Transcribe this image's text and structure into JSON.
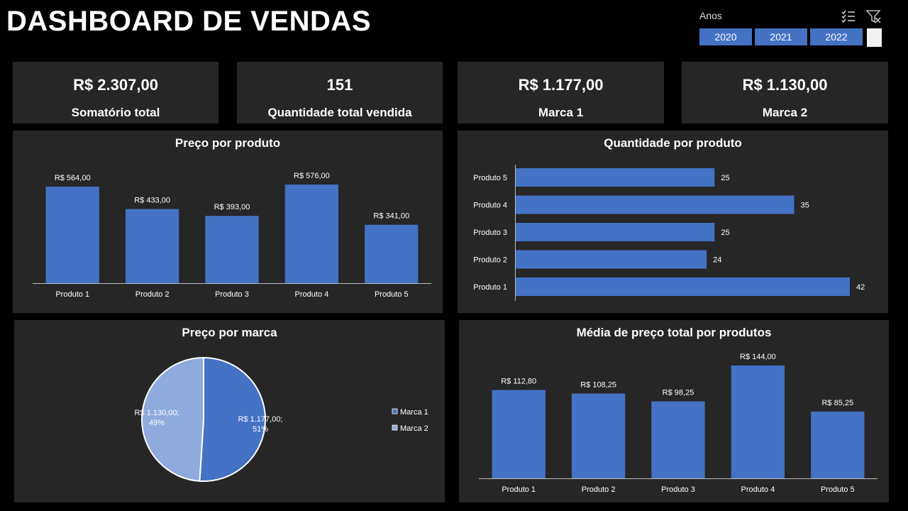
{
  "header": {
    "title": "DASHBOARD DE VENDAS"
  },
  "slicer": {
    "label": "Anos",
    "multi_select_icon": "multi-select-icon",
    "clear_filter_icon": "clear-filter-icon",
    "years": [
      "2020",
      "2021",
      "2022"
    ],
    "accent": "#4472c4"
  },
  "kpis": [
    {
      "value": "R$ 2.307,00",
      "label": "Somatório total"
    },
    {
      "value": "151",
      "label": "Quantidade total vendida"
    },
    {
      "value": "R$ 1.177,00",
      "label": "Marca 1"
    },
    {
      "value": "R$ 1.130,00",
      "label": "Marca 2"
    }
  ],
  "charts": {
    "price": {
      "title": "Preço por produto"
    },
    "quantity": {
      "title": "Quantidade por produto"
    },
    "brand": {
      "title": "Preço por marca"
    },
    "avg": {
      "title": "Média de preço total por produtos"
    }
  },
  "chart_data": [
    {
      "type": "bar",
      "title": "Preço por produto",
      "categories": [
        "Produto 1",
        "Produto 2",
        "Produto 3",
        "Produto 4",
        "Produto 5"
      ],
      "values": [
        564,
        433,
        393,
        576,
        341
      ],
      "labels": [
        "R$ 564,00",
        "R$ 433,00",
        "R$ 393,00",
        "R$ 576,00",
        "R$ 341,00"
      ],
      "ylim": [
        0,
        576
      ],
      "color": "#4472c4"
    },
    {
      "type": "bar",
      "orientation": "horizontal",
      "title": "Quantidade por produto",
      "categories": [
        "Produto 5",
        "Produto 4",
        "Produto 3",
        "Produto 2",
        "Produto 1"
      ],
      "values": [
        25,
        35,
        25,
        24,
        42
      ],
      "labels": [
        "25",
        "35",
        "25",
        "24",
        "42"
      ],
      "xlim": [
        0,
        42
      ],
      "color": "#4472c4"
    },
    {
      "type": "pie",
      "title": "Preço por marca",
      "categories": [
        "Marca 1",
        "Marca 2"
      ],
      "values": [
        1177,
        1130
      ],
      "labels": [
        "R$ 1.177,00; 51%",
        "R$ 1.130,00; 49%"
      ],
      "colors": [
        "#4472c4",
        "#8faadc"
      ],
      "legend": "right"
    },
    {
      "type": "bar",
      "title": "Média de preço total por produtos",
      "categories": [
        "Produto 1",
        "Produto 2",
        "Produto 3",
        "Produto 4",
        "Produto 5"
      ],
      "values": [
        112.8,
        108.25,
        98.25,
        144,
        85.25
      ],
      "labels": [
        "R$ 112,80",
        "R$ 108,25",
        "R$ 98,25",
        "R$ 144,00",
        "R$ 85,25"
      ],
      "ylim": [
        0,
        144
      ],
      "color": "#4472c4"
    }
  ]
}
